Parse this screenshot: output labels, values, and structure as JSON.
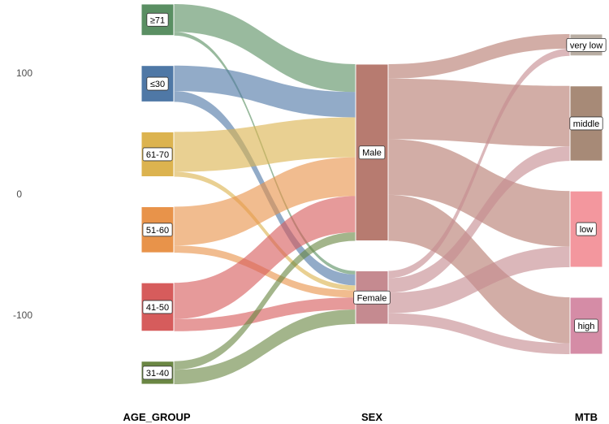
{
  "chart_data": {
    "type": "alluvial",
    "axes": [
      "AGE_GROUP",
      "SEX",
      "MTB"
    ],
    "y_ticks": [
      100,
      0,
      -100
    ],
    "nodes": {
      "AGE_GROUP": [
        {
          "id": "g71",
          "label": "≥71",
          "color": "#5a8f63"
        },
        {
          "id": "g30",
          "label": "≤30",
          "color": "#4f78a6"
        },
        {
          "id": "g61",
          "label": "61-70",
          "color": "#dcb34f"
        },
        {
          "id": "g51",
          "label": "51-60",
          "color": "#e8934a"
        },
        {
          "id": "g41",
          "label": "41-50",
          "color": "#d65c5c"
        },
        {
          "id": "g31",
          "label": "31-40",
          "color": "#6b8744"
        }
      ],
      "SEX": [
        {
          "id": "male",
          "label": "Male",
          "color": "#b77b70"
        },
        {
          "id": "female",
          "label": "Female",
          "color": "#c58a90"
        }
      ],
      "MTB": [
        {
          "id": "verylow",
          "label": "very low",
          "color": "#b9aea3"
        },
        {
          "id": "middle",
          "label": "middle",
          "color": "#a78a77"
        },
        {
          "id": "low",
          "label": "low",
          "color": "#f3979e"
        },
        {
          "id": "high",
          "label": "high",
          "color": "#d58ca6"
        }
      ]
    },
    "flows_age_sex": [
      {
        "from": "g71",
        "to": "male",
        "value": 23
      },
      {
        "from": "g71",
        "to": "female",
        "value": 3
      },
      {
        "from": "g30",
        "to": "male",
        "value": 21
      },
      {
        "from": "g30",
        "to": "female",
        "value": 9
      },
      {
        "from": "g61",
        "to": "male",
        "value": 33
      },
      {
        "from": "g61",
        "to": "female",
        "value": 4
      },
      {
        "from": "g51",
        "to": "male",
        "value": 32
      },
      {
        "from": "g51",
        "to": "female",
        "value": 6
      },
      {
        "from": "g41",
        "to": "male",
        "value": 30
      },
      {
        "from": "g41",
        "to": "female",
        "value": 10
      },
      {
        "from": "g31",
        "to": "male",
        "value": 7
      },
      {
        "from": "g31",
        "to": "female",
        "value": 12
      }
    ],
    "flows_sex_mtb": [
      {
        "from": "male",
        "to": "verylow",
        "value": 12
      },
      {
        "from": "male",
        "to": "middle",
        "value": 50
      },
      {
        "from": "male",
        "to": "low",
        "value": 46
      },
      {
        "from": "male",
        "to": "high",
        "value": 38
      },
      {
        "from": "female",
        "to": "verylow",
        "value": 6
      },
      {
        "from": "female",
        "to": "middle",
        "value": 12
      },
      {
        "from": "female",
        "to": "low",
        "value": 17
      },
      {
        "from": "female",
        "to": "high",
        "value": 9
      }
    ]
  }
}
